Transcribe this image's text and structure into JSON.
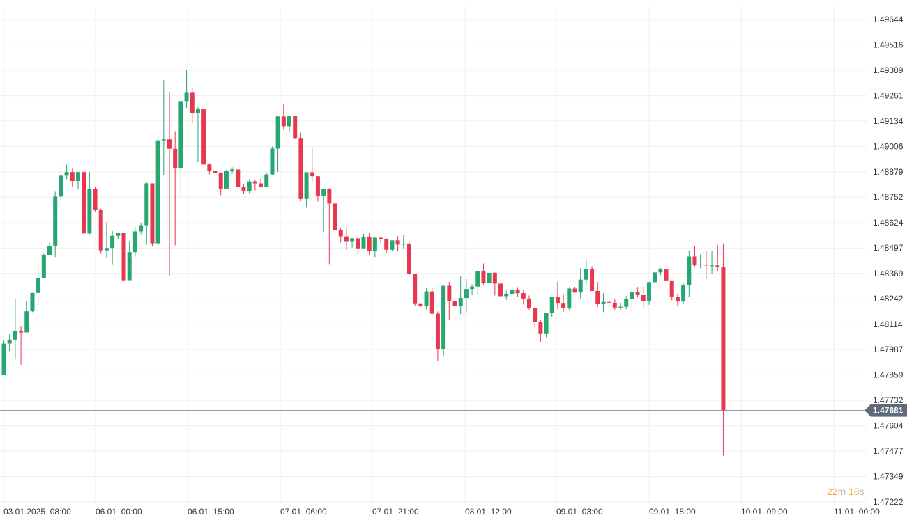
{
  "chart_data": {
    "type": "candlestick",
    "y_ticks": [
      "1.49644",
      "1.49516",
      "1.49389",
      "1.49261",
      "1.49134",
      "1.49006",
      "1.48879",
      "1.48752",
      "1.48624",
      "1.48497",
      "1.48369",
      "1.48242",
      "1.48114",
      "1.47987",
      "1.47859",
      "1.47732",
      "1.47604",
      "1.47477",
      "1.47349",
      "1.47222"
    ],
    "x_ticks": [
      "03.01.2025  08:00",
      "06.01  00:00",
      "06.01  15:00",
      "07.01  06:00",
      "07.01  21:00",
      "08.01  12:00",
      "09.01  03:00",
      "09.01  18:00",
      "10.01  09:00",
      "11.01  00:00"
    ],
    "ylim": [
      1.47222,
      1.49644
    ],
    "current_price": "1.47681",
    "countdown": {
      "minutes": "22",
      "m": "m",
      "seconds": "18",
      "s": "s"
    },
    "colors": {
      "up": "#26a671",
      "down": "#e8384f",
      "grid": "#efefef",
      "price_line": "#888888",
      "label_bg": "#5f6b78"
    },
    "candles": [
      [
        1.47859,
        1.48032,
        1.47859,
        1.48017
      ],
      [
        1.48017,
        1.48064,
        1.4798,
        1.48037
      ],
      [
        1.48037,
        1.48243,
        1.47939,
        1.48082
      ],
      [
        1.48082,
        1.48103,
        1.47911,
        1.48073
      ],
      [
        1.48073,
        1.4823,
        1.48073,
        1.48179
      ],
      [
        1.48179,
        1.48271,
        1.48175,
        1.48271
      ],
      [
        1.48271,
        1.48414,
        1.48208,
        1.48345
      ],
      [
        1.48345,
        1.48468,
        1.48345,
        1.4846
      ],
      [
        1.4846,
        1.48523,
        1.48459,
        1.48506
      ],
      [
        1.48506,
        1.48779,
        1.48452,
        1.48755
      ],
      [
        1.48755,
        1.48906,
        1.48706,
        1.4886
      ],
      [
        1.4886,
        1.48915,
        1.48843,
        1.48878
      ],
      [
        1.48878,
        1.48895,
        1.48805,
        1.48833
      ],
      [
        1.48833,
        1.48878,
        1.48791,
        1.48878
      ],
      [
        1.48878,
        1.48888,
        1.48566,
        1.4857
      ],
      [
        1.4857,
        1.48878,
        1.48566,
        1.48795
      ],
      [
        1.48795,
        1.48802,
        1.4868,
        1.48688
      ],
      [
        1.48688,
        1.48695,
        1.48467,
        1.48485
      ],
      [
        1.48485,
        1.48625,
        1.48446,
        1.48497
      ],
      [
        1.48497,
        1.48582,
        1.48415,
        1.48558
      ],
      [
        1.48558,
        1.48573,
        1.4854,
        1.48573
      ],
      [
        1.48573,
        1.48573,
        1.48332,
        1.48335
      ],
      [
        1.48335,
        1.48531,
        1.48335,
        1.48476
      ],
      [
        1.48476,
        1.48602,
        1.48453,
        1.4858
      ],
      [
        1.4858,
        1.48624,
        1.48566,
        1.48611
      ],
      [
        1.48611,
        1.48826,
        1.48512,
        1.48821
      ],
      [
        1.48821,
        1.48821,
        1.48504,
        1.4852
      ],
      [
        1.4852,
        1.49059,
        1.485,
        1.49037
      ],
      [
        1.49037,
        1.49339,
        1.48862,
        1.49042
      ],
      [
        1.49042,
        1.49282,
        1.48355,
        1.48995
      ],
      [
        1.48995,
        1.49083,
        1.4851,
        1.48897
      ],
      [
        1.48897,
        1.49261,
        1.48765,
        1.49234
      ],
      [
        1.49234,
        1.49391,
        1.492,
        1.49279
      ],
      [
        1.49279,
        1.49303,
        1.49126,
        1.49172
      ],
      [
        1.49172,
        1.49205,
        1.48927,
        1.49193
      ],
      [
        1.49193,
        1.49193,
        1.48914,
        1.48916
      ],
      [
        1.48916,
        1.48922,
        1.48866,
        1.48884
      ],
      [
        1.48884,
        1.48891,
        1.48794,
        1.48873
      ],
      [
        1.48873,
        1.48877,
        1.48762,
        1.48795
      ],
      [
        1.48795,
        1.48891,
        1.48795,
        1.48884
      ],
      [
        1.48884,
        1.48902,
        1.48869,
        1.48891
      ],
      [
        1.48891,
        1.48891,
        1.48794,
        1.48803
      ],
      [
        1.48803,
        1.48817,
        1.48769,
        1.48782
      ],
      [
        1.48782,
        1.4884,
        1.48772,
        1.48831
      ],
      [
        1.48831,
        1.4884,
        1.48786,
        1.48821
      ],
      [
        1.48821,
        1.4885,
        1.488,
        1.48805
      ],
      [
        1.48805,
        1.48874,
        1.48805,
        1.48866
      ],
      [
        1.48866,
        1.49006,
        1.48864,
        1.48996
      ],
      [
        1.48996,
        1.49159,
        1.48879,
        1.49157
      ],
      [
        1.49157,
        1.49217,
        1.49089,
        1.49108
      ],
      [
        1.49108,
        1.49158,
        1.49076,
        1.49158
      ],
      [
        1.49158,
        1.49158,
        1.49044,
        1.49049
      ],
      [
        1.49049,
        1.49076,
        1.48732,
        1.48743
      ],
      [
        1.48743,
        1.48877,
        1.48699,
        1.48877
      ],
      [
        1.48877,
        1.48999,
        1.48825,
        1.48857
      ],
      [
        1.48857,
        1.48857,
        1.4873,
        1.4876
      ],
      [
        1.4876,
        1.48793,
        1.48579,
        1.48792
      ],
      [
        1.48792,
        1.48797,
        1.48416,
        1.4872
      ],
      [
        1.4872,
        1.48734,
        1.48584,
        1.48588
      ],
      [
        1.48588,
        1.486,
        1.48523,
        1.48555
      ],
      [
        1.48555,
        1.48601,
        1.48488,
        1.48531
      ],
      [
        1.48531,
        1.48547,
        1.48499,
        1.48545
      ],
      [
        1.48545,
        1.48554,
        1.48466,
        1.48495
      ],
      [
        1.48495,
        1.48568,
        1.48495,
        1.48554
      ],
      [
        1.48554,
        1.48575,
        1.4846,
        1.4848
      ],
      [
        1.4848,
        1.48554,
        1.48451,
        1.48548
      ],
      [
        1.48548,
        1.48551,
        1.48524,
        1.4854
      ],
      [
        1.4854,
        1.48545,
        1.48474,
        1.48488
      ],
      [
        1.48488,
        1.48534,
        1.4848,
        1.48535
      ],
      [
        1.48535,
        1.48556,
        1.48479,
        1.48514
      ],
      [
        1.48514,
        1.48561,
        1.4849,
        1.48519
      ],
      [
        1.48519,
        1.48529,
        1.48362,
        1.48366
      ],
      [
        1.48366,
        1.48367,
        1.48206,
        1.48219
      ],
      [
        1.48219,
        1.48219,
        1.48202,
        1.48204
      ],
      [
        1.48204,
        1.48294,
        1.48189,
        1.48279
      ],
      [
        1.48279,
        1.48297,
        1.48163,
        1.48167
      ],
      [
        1.48167,
        1.48178,
        1.47928,
        1.47988
      ],
      [
        1.47988,
        1.48304,
        1.47951,
        1.48307
      ],
      [
        1.48307,
        1.48327,
        1.48136,
        1.48231
      ],
      [
        1.48231,
        1.48286,
        1.48189,
        1.48204
      ],
      [
        1.48204,
        1.48357,
        1.48166,
        1.48246
      ],
      [
        1.48246,
        1.48342,
        1.48173,
        1.48291
      ],
      [
        1.48291,
        1.48315,
        1.4826,
        1.48303
      ],
      [
        1.48303,
        1.48376,
        1.48259,
        1.48381
      ],
      [
        1.48381,
        1.48419,
        1.48313,
        1.4832
      ],
      [
        1.4832,
        1.48378,
        1.48311,
        1.48372
      ],
      [
        1.48372,
        1.48375,
        1.48258,
        1.48318
      ],
      [
        1.48318,
        1.48318,
        1.48253,
        1.48255
      ],
      [
        1.48255,
        1.48282,
        1.48237,
        1.48266
      ],
      [
        1.48266,
        1.48291,
        1.48231,
        1.48287
      ],
      [
        1.48287,
        1.48297,
        1.48251,
        1.4827
      ],
      [
        1.4827,
        1.48285,
        1.48213,
        1.48243
      ],
      [
        1.48243,
        1.48258,
        1.48183,
        1.48196
      ],
      [
        1.48196,
        1.48201,
        1.48098,
        1.48125
      ],
      [
        1.48125,
        1.48136,
        1.48026,
        1.48065
      ],
      [
        1.48065,
        1.48172,
        1.48049,
        1.4817
      ],
      [
        1.4817,
        1.48251,
        1.48152,
        1.4825
      ],
      [
        1.4825,
        1.48327,
        1.4819,
        1.48221
      ],
      [
        1.48221,
        1.48263,
        1.48177,
        1.48194
      ],
      [
        1.48194,
        1.48296,
        1.48183,
        1.48293
      ],
      [
        1.48293,
        1.48301,
        1.48272,
        1.48273
      ],
      [
        1.48273,
        1.48395,
        1.48244,
        1.48338
      ],
      [
        1.48338,
        1.48441,
        1.4831,
        1.48391
      ],
      [
        1.48391,
        1.48405,
        1.4828,
        1.48281
      ],
      [
        1.48281,
        1.48326,
        1.48201,
        1.48218
      ],
      [
        1.48218,
        1.4827,
        1.48175,
        1.48226
      ],
      [
        1.48226,
        1.48232,
        1.482,
        1.48222
      ],
      [
        1.48222,
        1.48242,
        1.48183,
        1.48198
      ],
      [
        1.48198,
        1.48223,
        1.48185,
        1.48202
      ],
      [
        1.48202,
        1.48256,
        1.48189,
        1.48242
      ],
      [
        1.48242,
        1.4829,
        1.48173,
        1.48276
      ],
      [
        1.48276,
        1.48298,
        1.4825,
        1.4826
      ],
      [
        1.4826,
        1.48301,
        1.482,
        1.48229
      ],
      [
        1.48229,
        1.48327,
        1.48212,
        1.48325
      ],
      [
        1.48325,
        1.4837,
        1.48319,
        1.48374
      ],
      [
        1.48374,
        1.48397,
        1.4836,
        1.48392
      ],
      [
        1.48392,
        1.48392,
        1.48334,
        1.48334
      ],
      [
        1.48334,
        1.48334,
        1.48234,
        1.4825
      ],
      [
        1.4825,
        1.48267,
        1.48204,
        1.48228
      ],
      [
        1.48228,
        1.48319,
        1.48216,
        1.48309
      ],
      [
        1.48309,
        1.48485,
        1.4825,
        1.48454
      ],
      [
        1.48454,
        1.48505,
        1.48404,
        1.4841
      ],
      [
        1.4841,
        1.48465,
        1.48395,
        1.48414
      ],
      [
        1.48414,
        1.48484,
        1.4834,
        1.48409
      ],
      [
        1.48409,
        1.48481,
        1.48365,
        1.48409
      ],
      [
        1.48409,
        1.48512,
        1.4838,
        1.48403
      ],
      [
        1.48403,
        1.4852,
        1.47454,
        1.47681
      ]
    ]
  }
}
